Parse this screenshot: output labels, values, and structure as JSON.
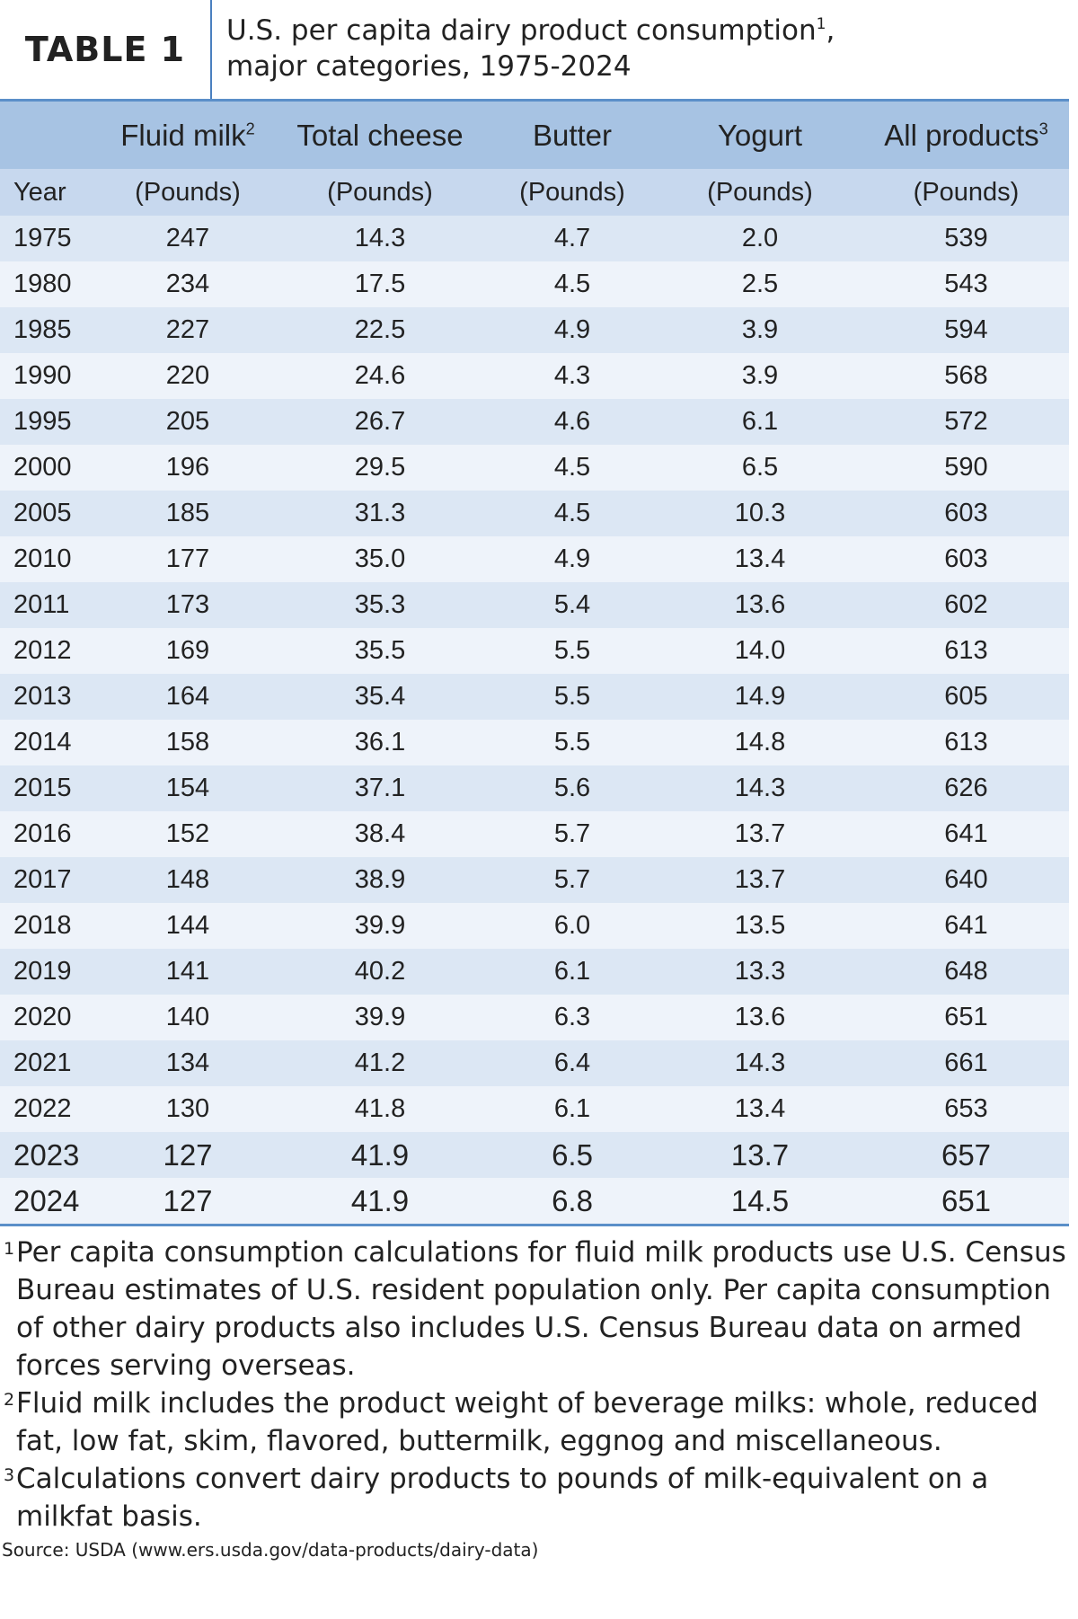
{
  "header": {
    "label": "TABLE 1",
    "title_line1": "U.S. per capita dairy product consumption",
    "title_sup": "1",
    "title_comma": ",",
    "title_line2": "major categories, 1975-2024"
  },
  "table": {
    "columns": [
      {
        "name": "",
        "sup": ""
      },
      {
        "name": "Fluid milk",
        "sup": "2"
      },
      {
        "name": "Total cheese",
        "sup": ""
      },
      {
        "name": "Butter",
        "sup": ""
      },
      {
        "name": "Yogurt",
        "sup": ""
      },
      {
        "name": "All products",
        "sup": "3"
      }
    ],
    "units": [
      "Year",
      "(Pounds)",
      "(Pounds)",
      "(Pounds)",
      "(Pounds)",
      "(Pounds)"
    ],
    "rows": [
      [
        "1975",
        "247",
        "14.3",
        "4.7",
        "2.0",
        "539"
      ],
      [
        "1980",
        "234",
        "17.5",
        "4.5",
        "2.5",
        "543"
      ],
      [
        "1985",
        "227",
        "22.5",
        "4.9",
        "3.9",
        "594"
      ],
      [
        "1990",
        "220",
        "24.6",
        "4.3",
        "3.9",
        "568"
      ],
      [
        "1995",
        "205",
        "26.7",
        "4.6",
        "6.1",
        "572"
      ],
      [
        "2000",
        "196",
        "29.5",
        "4.5",
        "6.5",
        "590"
      ],
      [
        "2005",
        "185",
        "31.3",
        "4.5",
        "10.3",
        "603"
      ],
      [
        "2010",
        "177",
        "35.0",
        "4.9",
        "13.4",
        "603"
      ],
      [
        "2011",
        "173",
        "35.3",
        "5.4",
        "13.6",
        "602"
      ],
      [
        "2012",
        "169",
        "35.5",
        "5.5",
        "14.0",
        "613"
      ],
      [
        "2013",
        "164",
        "35.4",
        "5.5",
        "14.9",
        "605"
      ],
      [
        "2014",
        "158",
        "36.1",
        "5.5",
        "14.8",
        "613"
      ],
      [
        "2015",
        "154",
        "37.1",
        "5.6",
        "14.3",
        "626"
      ],
      [
        "2016",
        "152",
        "38.4",
        "5.7",
        "13.7",
        "641"
      ],
      [
        "2017",
        "148",
        "38.9",
        "5.7",
        "13.7",
        "640"
      ],
      [
        "2018",
        "144",
        "39.9",
        "6.0",
        "13.5",
        "641"
      ],
      [
        "2019",
        "141",
        "40.2",
        "6.1",
        "13.3",
        "648"
      ],
      [
        "2020",
        "140",
        "39.9",
        "6.3",
        "13.6",
        "651"
      ],
      [
        "2021",
        "134",
        "41.2",
        "6.4",
        "14.3",
        "661"
      ],
      [
        "2022",
        "130",
        "41.8",
        "6.1",
        "13.4",
        "653"
      ],
      [
        "2023",
        "127",
        "41.9",
        "6.5",
        "13.7",
        "657"
      ],
      [
        "2024",
        "127",
        "41.9",
        "6.8",
        "14.5",
        "651"
      ]
    ]
  },
  "footnotes": [
    {
      "marker": "1",
      "text": "Per capita consumption calculations for fluid milk products use U.S. Census Bureau estimates of U.S. resident population only. Per capita consumption of other dairy products also includes U.S. Census Bureau data on armed forces serving overseas."
    },
    {
      "marker": "2",
      "text": "Fluid milk includes the product weight of beverage milks: whole, reduced fat, low fat, skim, flavored, buttermilk, eggnog and miscellaneous."
    },
    {
      "marker": "3",
      "text": "Calculations convert dairy products to pounds of milk-equivalent on a milkfat basis."
    }
  ],
  "source": "Source: USDA (www.ers.usda.gov/data-products/dairy-data)"
}
